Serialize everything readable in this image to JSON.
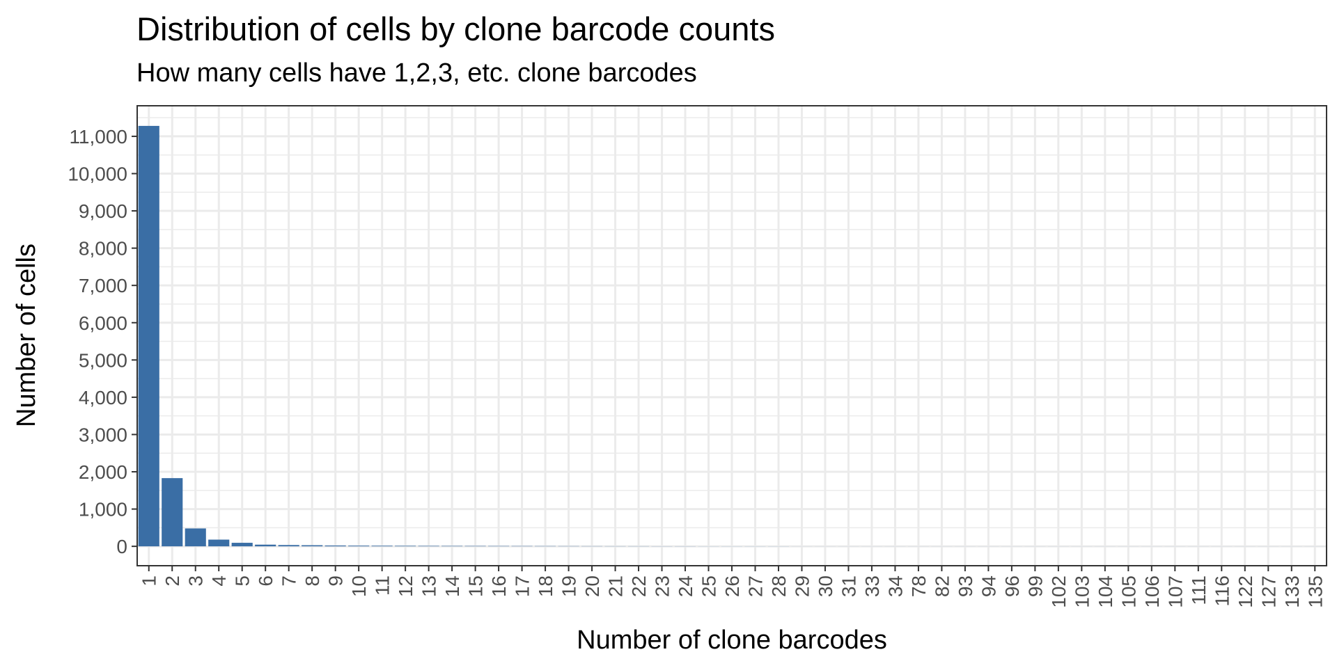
{
  "chart_data": {
    "type": "bar",
    "title": "Distribution of cells by clone barcode counts",
    "subtitle": "How many cells have 1,2,3, etc. clone barcodes",
    "xlabel": "Number of clone barcodes",
    "ylabel": "Number of cells",
    "ylim": [
      -520,
      11820
    ],
    "yticks": [
      0,
      1000,
      2000,
      3000,
      4000,
      5000,
      6000,
      7000,
      8000,
      9000,
      10000,
      11000
    ],
    "ytick_labels": [
      "0",
      "1,000",
      "2,000",
      "3,000",
      "4,000",
      "5,000",
      "6,000",
      "7,000",
      "8,000",
      "9,000",
      "10,000",
      "11,000"
    ],
    "grid": true,
    "bar_color": "#3a6ea5",
    "grid_color": "#ebebeb",
    "categories": [
      "1",
      "2",
      "3",
      "4",
      "5",
      "6",
      "7",
      "8",
      "9",
      "10",
      "11",
      "12",
      "13",
      "14",
      "15",
      "16",
      "17",
      "18",
      "19",
      "20",
      "21",
      "22",
      "23",
      "24",
      "25",
      "26",
      "27",
      "28",
      "29",
      "30",
      "31",
      "33",
      "34",
      "78",
      "82",
      "93",
      "94",
      "96",
      "99",
      "102",
      "103",
      "104",
      "105",
      "106",
      "107",
      "111",
      "116",
      "122",
      "127",
      "133",
      "135"
    ],
    "values": [
      11280,
      1830,
      480,
      180,
      95,
      45,
      35,
      30,
      22,
      18,
      16,
      14,
      12,
      11,
      10,
      9,
      8,
      7,
      6,
      5,
      4,
      4,
      3,
      3,
      2,
      2,
      2,
      2,
      1,
      1,
      1,
      1,
      1,
      1,
      1,
      1,
      1,
      1,
      1,
      1,
      1,
      1,
      1,
      1,
      1,
      1,
      1,
      1,
      1,
      1,
      1
    ]
  }
}
